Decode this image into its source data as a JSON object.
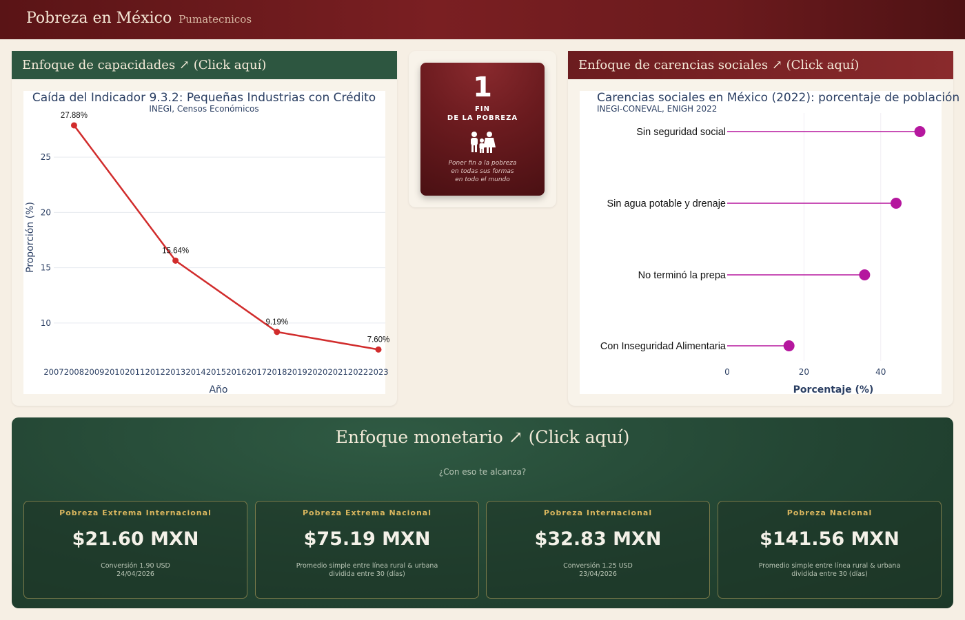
{
  "header": {
    "title": "Pobreza en México",
    "subtitle": "Pumatecnicos"
  },
  "capacidades": {
    "heading": "Enfoque de capacidades ↗ (Click aquí)",
    "chart_data": {
      "type": "line",
      "title": "Caída del Indicador 9.3.2: Pequeñas Industrias con Crédito",
      "subtitle": "INEGI, Censos Económicos",
      "xlabel": "Año",
      "ylabel": "Proporción (%)",
      "x_ticks": [
        "2007",
        "2008",
        "2009",
        "2010",
        "2011",
        "2012",
        "2013",
        "2014",
        "2015",
        "2016",
        "2017",
        "2018",
        "2019",
        "2020",
        "2021",
        "2022",
        "2023"
      ],
      "y_ticks": [
        10,
        15,
        20,
        25
      ],
      "xlim": [
        2007,
        2023
      ],
      "ylim": [
        7.0,
        28.5
      ],
      "series": [
        {
          "x": [
            2008,
            2013,
            2018,
            2023
          ],
          "y": [
            27.88,
            15.64,
            9.19,
            7.6
          ],
          "labels": [
            "27.88%",
            "15.64%",
            "9.19%",
            "7.60%"
          ]
        }
      ],
      "color": "#d12c2c",
      "grid": true
    }
  },
  "sdg": {
    "number": "1",
    "line1": "FIN",
    "line2": "DE LA POBREZA",
    "tagline": [
      "Poner fin a la pobreza",
      "en todas sus formas",
      "en todo el mundo"
    ]
  },
  "carencias": {
    "heading": "Enfoque de carencias sociales ↗ (Click aquí)",
    "chart_data": {
      "type": "lollipop",
      "title": "Carencias sociales en México (2022): porcentaje de población",
      "subtitle": "INEGI-CONEVAL, ENIGH 2022",
      "xlabel": "Porcentaje (%)",
      "x_ticks": [
        0,
        20,
        40
      ],
      "xlim": [
        0,
        51
      ],
      "categories": [
        "Sin seguridad social",
        "Sin agua potable y drenaje",
        "No terminó la prepa",
        "Con Inseguridad Alimentaria"
      ],
      "values": [
        50.2,
        44.0,
        35.8,
        16.1
      ],
      "color": "#b5179e",
      "grid": true
    }
  },
  "monetario": {
    "heading": "Enfoque monetario ↗ (Click aquí)",
    "question": "¿Con eso te alcanza?",
    "cards": [
      {
        "label": "Pobreza Extrema Internacional",
        "value": "$21.60 MXN",
        "note": [
          "Conversión 1.90 USD",
          "24/04/2026"
        ]
      },
      {
        "label": "Pobreza Extrema Nacional",
        "value": "$75.19 MXN",
        "note": [
          "Promedio simple entre línea rural & urbana",
          "dividida entre 30 (días)"
        ]
      },
      {
        "label": "Pobreza Internacional",
        "value": "$32.83 MXN",
        "note": [
          "Conversión 1.25 USD",
          "23/04/2026"
        ]
      },
      {
        "label": "Pobreza Nacional",
        "value": "$141.56 MXN",
        "note": [
          "Promedio simple entre línea rural & urbana",
          "dividida entre 30 (días)"
        ]
      }
    ]
  }
}
